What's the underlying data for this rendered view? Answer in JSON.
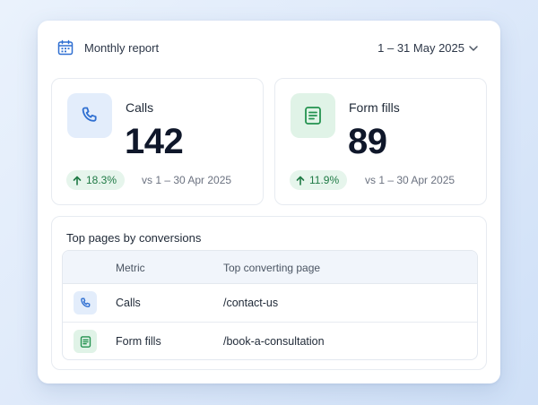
{
  "header": {
    "title": "Monthly report",
    "date_range": "1 – 31 May 2025",
    "calendar_icon": "calendar-icon",
    "dropdown_icon": "chevron-down-icon"
  },
  "stats": [
    {
      "label": "Calls",
      "value": "142",
      "change": "18.3%",
      "comparison": "vs 1 – 30 Apr 2025",
      "icon": "phone-icon",
      "accent": "#2f6fd1"
    },
    {
      "label": "Form fills",
      "value": "89",
      "change": "11.9%",
      "comparison": "vs 1 – 30 Apr 2025",
      "icon": "form-icon",
      "accent": "#23924f"
    }
  ],
  "top_pages": {
    "title": "Top pages by conversions",
    "columns": [
      "Metric",
      "Top converting page"
    ],
    "rows": [
      {
        "metric": "Calls",
        "page": "/contact-us",
        "icon": "phone-icon"
      },
      {
        "metric": "Form fills",
        "page": "/book-a-consultation",
        "icon": "form-icon"
      }
    ]
  },
  "colors": {
    "positive_change": "#1f7a45",
    "positive_change_bg": "#e6f5ec",
    "calls_icon_bg": "#e3edfb",
    "forms_icon_bg": "#e0f3e7",
    "table_header_bg": "#f1f5fb"
  }
}
